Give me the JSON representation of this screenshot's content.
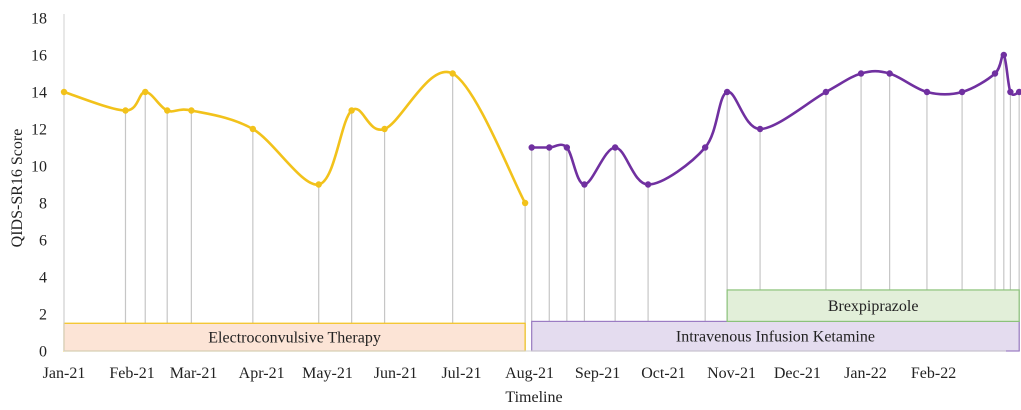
{
  "chart_data": {
    "type": "line",
    "title": "",
    "xlabel": "Timeline",
    "ylabel": "QIDS-SR16 Score",
    "ylim": [
      0,
      18
    ],
    "yticks": [
      0,
      2,
      4,
      6,
      8,
      10,
      12,
      14,
      16,
      18
    ],
    "xlim": [
      "2021-01-01",
      "2022-03-06"
    ],
    "xticks": [
      {
        "date": "2021-01-01",
        "label": "Jan-21"
      },
      {
        "date": "2021-02-01",
        "label": "Feb-21"
      },
      {
        "date": "2021-03-01",
        "label": "Mar-21"
      },
      {
        "date": "2021-04-01",
        "label": "Apr-21"
      },
      {
        "date": "2021-05-01",
        "label": "May-21"
      },
      {
        "date": "2021-06-01",
        "label": "Jun-21"
      },
      {
        "date": "2021-07-01",
        "label": "Jul-21"
      },
      {
        "date": "2021-08-01",
        "label": "Aug-21"
      },
      {
        "date": "2021-09-01",
        "label": "Sep-21"
      },
      {
        "date": "2021-10-01",
        "label": "Oct-21"
      },
      {
        "date": "2021-11-01",
        "label": "Nov-21"
      },
      {
        "date": "2021-12-01",
        "label": "Dec-21"
      },
      {
        "date": "2022-01-01",
        "label": "Jan-22"
      },
      {
        "date": "2022-02-01",
        "label": "Feb-22"
      }
    ],
    "grid": false,
    "legend": "none",
    "series": [
      {
        "color": "#f2c21b",
        "points": [
          {
            "x": "2021-01-01",
            "y": 14
          },
          {
            "x": "2021-01-29",
            "y": 13
          },
          {
            "x": "2021-02-07",
            "y": 14
          },
          {
            "x": "2021-02-17",
            "y": 13
          },
          {
            "x": "2021-02-28",
            "y": 13
          },
          {
            "x": "2021-03-28",
            "y": 12
          },
          {
            "x": "2021-04-27",
            "y": 9
          },
          {
            "x": "2021-05-12",
            "y": 13
          },
          {
            "x": "2021-05-27",
            "y": 12
          },
          {
            "x": "2021-06-27",
            "y": 15
          },
          {
            "x": "2021-07-30",
            "y": 8
          }
        ]
      },
      {
        "color": "#7030a0",
        "points": [
          {
            "x": "2021-08-02",
            "y": 11
          },
          {
            "x": "2021-08-10",
            "y": 11
          },
          {
            "x": "2021-08-18",
            "y": 11
          },
          {
            "x": "2021-08-26",
            "y": 9
          },
          {
            "x": "2021-09-09",
            "y": 11
          },
          {
            "x": "2021-09-24",
            "y": 9
          },
          {
            "x": "2021-10-20",
            "y": 11
          },
          {
            "x": "2021-10-30",
            "y": 14
          },
          {
            "x": "2021-11-14",
            "y": 12
          },
          {
            "x": "2021-12-14",
            "y": 14
          },
          {
            "x": "2021-12-30",
            "y": 15
          },
          {
            "x": "2022-01-12",
            "y": 15
          },
          {
            "x": "2022-01-29",
            "y": 14
          },
          {
            "x": "2022-02-14",
            "y": 14
          },
          {
            "x": "2022-03-01",
            "y": 15
          },
          {
            "x": "2022-03-05",
            "y": 16
          },
          {
            "x": "2022-03-08",
            "y": 14
          },
          {
            "x": "2022-03-12",
            "y": 14
          }
        ]
      }
    ],
    "annotations": [
      {
        "label": "Electroconvulsive Therapy",
        "start": "2021-01-01",
        "end": "2021-07-30",
        "y_range": [
          0,
          1.5
        ],
        "fill": "#fce4d6",
        "stroke": "#f2c21b"
      },
      {
        "label": "Intravenous Infusion Ketamine",
        "start": "2021-08-02",
        "end": "2022-03-12",
        "y_range": [
          0,
          1.6
        ],
        "fill": "#e4dcef",
        "stroke": "#9b7cc3"
      },
      {
        "label": "Brexpiprazole",
        "start": "2021-10-30",
        "end": "2022-03-12",
        "y_range": [
          1.6,
          3.3
        ],
        "fill": "#e2efd9",
        "stroke": "#8bc27a"
      }
    ]
  }
}
